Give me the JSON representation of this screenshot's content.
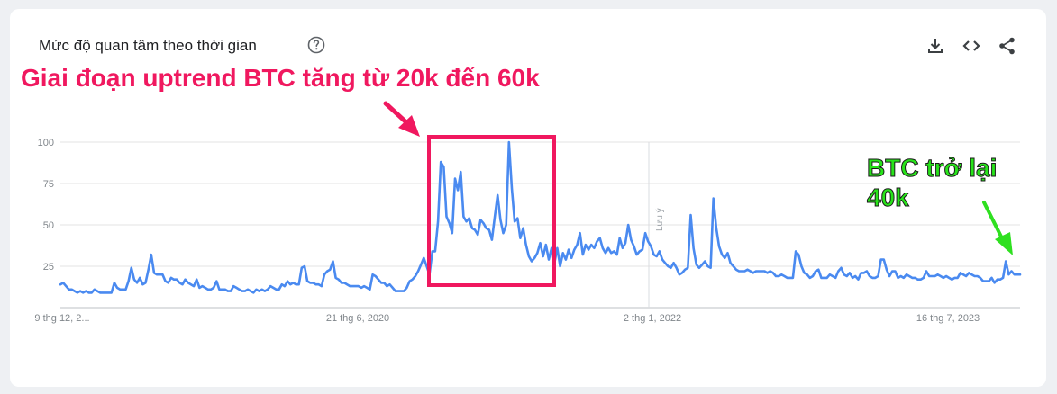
{
  "header": {
    "title": "Mức độ quan tâm theo thời gian",
    "help_icon": "help-circle-icon",
    "actions": [
      {
        "icon": "download-icon",
        "label": "Download CSV"
      },
      {
        "icon": "embed-code-icon",
        "label": "Embed"
      },
      {
        "icon": "share-icon",
        "label": "Share"
      }
    ]
  },
  "annotations": {
    "main": "Giai đoạn uptrend BTC tăng từ 20k đến 60k",
    "side_line1": "BTC trở lại",
    "side_line2": "40k"
  },
  "colors": {
    "line": "#4a8af0",
    "annotation_main": "#f0185f",
    "annotation_side": "#28e41a",
    "highlight_box": "#f0185f"
  },
  "chart_data": {
    "type": "line",
    "title": "",
    "xlabel": "",
    "ylabel": "",
    "ylim": [
      0,
      100
    ],
    "y_ticks": [
      25,
      50,
      75,
      100
    ],
    "x_tick_labels": [
      "9 thg 12, 2...",
      "21 thg 6, 2020",
      "2 thg 1, 2022",
      "16 thg 7, 2023"
    ],
    "marker_label": "Lưu ý",
    "grid": true,
    "series": [
      {
        "values": [
          14,
          15,
          13,
          11,
          11,
          10,
          9,
          10,
          9,
          10,
          9,
          9,
          11,
          10,
          9,
          9,
          9,
          9,
          9,
          15,
          12,
          11,
          11,
          11,
          16,
          24,
          17,
          15,
          18,
          14,
          15,
          23,
          32,
          21,
          20,
          20,
          20,
          16,
          15,
          18,
          17,
          17,
          15,
          14,
          17,
          15,
          14,
          13,
          17,
          12,
          13,
          12,
          11,
          11,
          12,
          16,
          11,
          11,
          11,
          10,
          10,
          13,
          12,
          11,
          10,
          10,
          11,
          10,
          9,
          11,
          10,
          11,
          10,
          11,
          13,
          12,
          11,
          11,
          14,
          13,
          16,
          14,
          15,
          14,
          14,
          24,
          25,
          16,
          15,
          15,
          14,
          14,
          13,
          20,
          22,
          23,
          28,
          18,
          17,
          15,
          15,
          14,
          13,
          13,
          13,
          13,
          12,
          13,
          12,
          11,
          20,
          19,
          17,
          15,
          15,
          13,
          14,
          12,
          10,
          10,
          10,
          10,
          12,
          16,
          17,
          19,
          22,
          26,
          30,
          25,
          20,
          34,
          34,
          52,
          88,
          85,
          55,
          51,
          45,
          78,
          71,
          82,
          55,
          52,
          54,
          48,
          47,
          44,
          53,
          51,
          48,
          47,
          41,
          55,
          68,
          53,
          45,
          50,
          100,
          72,
          52,
          54,
          42,
          48,
          38,
          31,
          28,
          30,
          33,
          39,
          31,
          38,
          29,
          36,
          27,
          36,
          25,
          33,
          29,
          35,
          30,
          35,
          38,
          45,
          32,
          38,
          35,
          38,
          36,
          40,
          42,
          36,
          33,
          36,
          33,
          34,
          32,
          42,
          36,
          39,
          50,
          41,
          37,
          32,
          34,
          35,
          45,
          40,
          37,
          32,
          31,
          34,
          29,
          27,
          25,
          24,
          27,
          24,
          20,
          21,
          23,
          24,
          56,
          36,
          26,
          24,
          26,
          28,
          25,
          24,
          66,
          48,
          37,
          32,
          30,
          33,
          27,
          25,
          23,
          22,
          22,
          22,
          23,
          22,
          21,
          22,
          22,
          22,
          22,
          21,
          22,
          21,
          19,
          19,
          20,
          19,
          18,
          18,
          18,
          34,
          32,
          25,
          21,
          20,
          18,
          19,
          22,
          23,
          18,
          18,
          18,
          20,
          19,
          18,
          22,
          24,
          20,
          19,
          21,
          18,
          19,
          17,
          21,
          21,
          22,
          19,
          18,
          18,
          19,
          29,
          29,
          23,
          19,
          22,
          22,
          18,
          19,
          18,
          20,
          19,
          18,
          18,
          17,
          17,
          18,
          22,
          19,
          19,
          19,
          20,
          19,
          18,
          19,
          18,
          17,
          18,
          18,
          21,
          20,
          19,
          21,
          20,
          19,
          19,
          18,
          16,
          16,
          16,
          18,
          15,
          17,
          17,
          18,
          28,
          20,
          22,
          20,
          20,
          20
        ]
      }
    ]
  }
}
